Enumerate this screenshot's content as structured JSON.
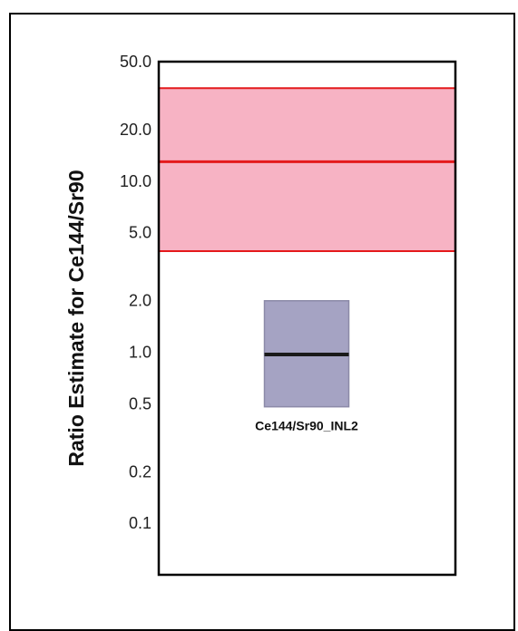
{
  "chart_data": {
    "type": "box",
    "ylabel": "Ratio Estimate for Ce144/Sr90",
    "yscale": "log",
    "ylim": [
      0.05,
      50.0
    ],
    "yticks": [
      {
        "value": 50.0,
        "label": "50.0"
      },
      {
        "value": 20.0,
        "label": "20.0"
      },
      {
        "value": 10.0,
        "label": "10.0"
      },
      {
        "value": 5.0,
        "label": "5.0"
      },
      {
        "value": 2.0,
        "label": "2.0"
      },
      {
        "value": 1.0,
        "label": "1.0"
      },
      {
        "value": 0.5,
        "label": "0.5"
      },
      {
        "value": 0.2,
        "label": "0.2"
      },
      {
        "value": 0.1,
        "label": "0.1"
      }
    ],
    "reference_band": {
      "lower": 3.9,
      "center": 13.0,
      "upper": 35.0,
      "fill": "#f7b3c4",
      "line_color": "#e41a1c"
    },
    "boxes": [
      {
        "label": "Ce144/Sr90_INL2",
        "lower": 0.48,
        "median": 0.97,
        "upper": 2.0,
        "fill": "#a5a3c3",
        "median_color": "#1a1a1a"
      }
    ],
    "grid": false
  }
}
